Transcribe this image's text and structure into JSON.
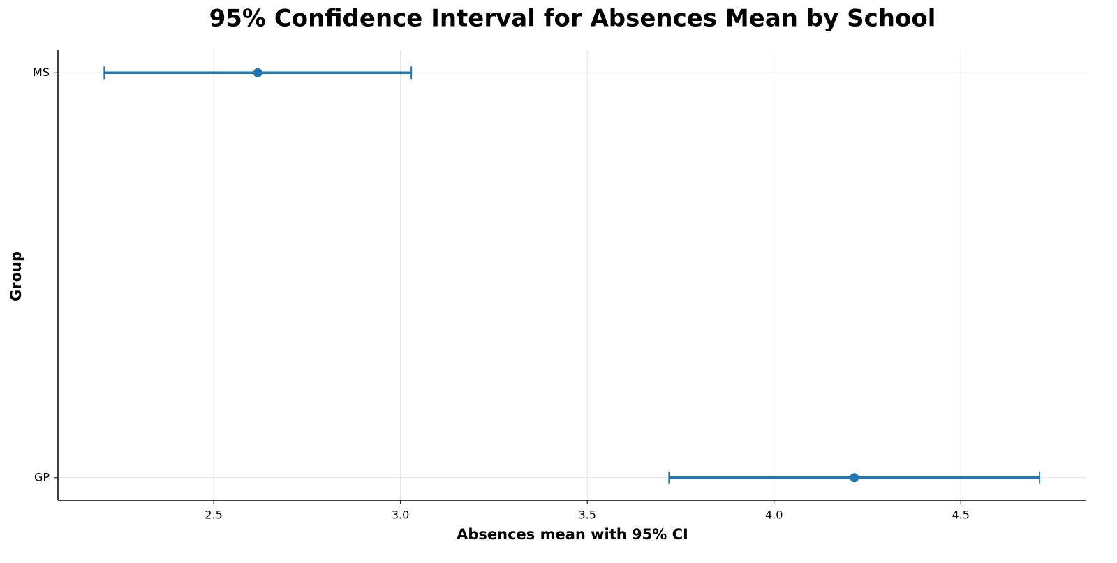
{
  "chart_data": {
    "type": "errorbar",
    "title": "95% Confidence Interval for Absences Mean by School",
    "xlabel": "Absences mean with 95% CI",
    "ylabel": "Group",
    "categories": [
      "GP",
      "MS"
    ],
    "values": [
      4.215,
      2.618
    ],
    "errors": [
      0.496,
      0.411
    ],
    "color": "#1f77b4",
    "xlim": [
      2.083,
      4.836
    ],
    "xticks": [
      2.5,
      {
        "value": 3,
        "label": "3.0"
      },
      3.5,
      {
        "value": 4,
        "label": "4.0"
      },
      4.5
    ],
    "grid": true
  }
}
